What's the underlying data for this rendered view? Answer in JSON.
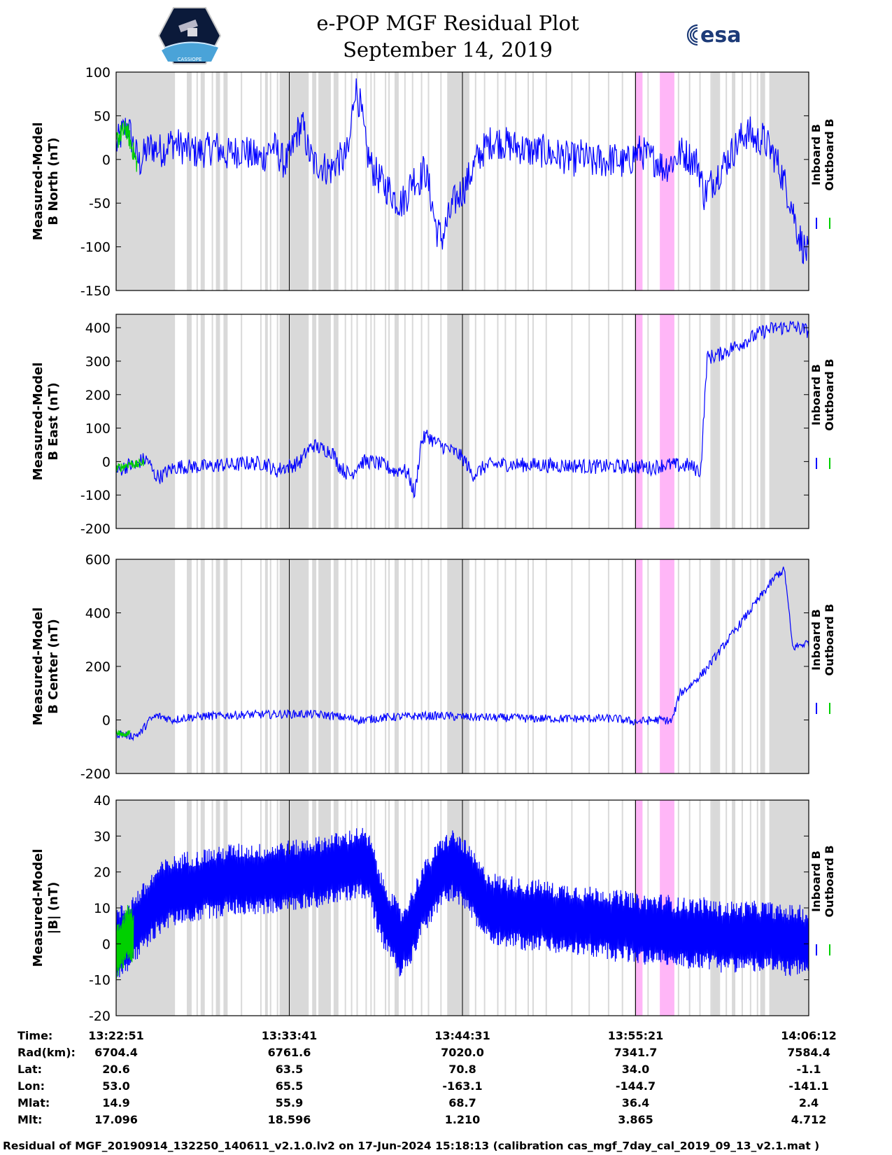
{
  "header": {
    "title_line1": "e-POP MGF Residual Plot",
    "title_line2": "September 14, 2019",
    "logo_left_text": "CASSIOPE",
    "logo_right_text": "esa"
  },
  "colors": {
    "inboard": "#0000ff",
    "outboard": "#00d000",
    "gap_shade": "#d9d9d9",
    "highlight_shade": "#ffb6f7"
  },
  "chart_data": {
    "type": "line",
    "time_ticks": [
      "13:22:51",
      "13:33:41",
      "13:44:31",
      "13:55:21",
      "14:06:12"
    ],
    "legend": [
      "Inboard B",
      "Outboard B"
    ],
    "panels": [
      {
        "ylabel_line1": "Measured-Model",
        "ylabel_line2": "B North (nT)",
        "ylim": [
          -150,
          100
        ],
        "yticks": [
          100,
          50,
          0,
          -50,
          -100,
          -150
        ],
        "series": [
          {
            "name": "Inboard B",
            "values": [
              15,
              30,
              40,
              15,
              -5,
              8,
              15,
              12,
              10,
              18,
              20,
              15,
              12,
              10,
              8,
              10,
              12,
              15,
              10,
              5,
              8,
              10,
              12,
              5,
              3,
              0,
              10,
              15,
              5,
              -5,
              5,
              30,
              40,
              10,
              -5,
              -5,
              -10,
              -12,
              0,
              0,
              10,
              85,
              60,
              10,
              -10,
              -20,
              -30,
              -35,
              -45,
              -50,
              -40,
              -20,
              -25,
              -10,
              -40,
              -80,
              -90,
              -70,
              -50,
              -40,
              -30,
              -15,
              0,
              10,
              18,
              22,
              20,
              18,
              15,
              15,
              12,
              10,
              8,
              10,
              8,
              5,
              5,
              3,
              0,
              0,
              5,
              0,
              -5,
              0,
              -3,
              0,
              0,
              -5,
              -3,
              5,
              10,
              5,
              0,
              0,
              -10,
              -5,
              0,
              8,
              5,
              0,
              -5,
              -40,
              -30,
              -20,
              -10,
              0,
              10,
              20,
              30,
              30,
              20,
              25,
              15,
              5,
              -10,
              -30,
              -50,
              -80,
              -100,
              -110
            ]
          },
          {
            "name": "Outboard B",
            "values": [
              20,
              30,
              35,
              15,
              -5
            ]
          }
        ]
      },
      {
        "ylabel_line1": "Measured-Model",
        "ylabel_line2": "B East (nT)",
        "ylim": [
          -200,
          440
        ],
        "yticks": [
          400,
          300,
          200,
          100,
          0,
          -100,
          -200
        ],
        "series": [
          {
            "name": "Inboard B",
            "values": [
              -30,
              -20,
              -10,
              -15,
              5,
              5,
              -40,
              -45,
              -30,
              -20,
              -15,
              -15,
              -15,
              -15,
              -15,
              -15,
              -10,
              -10,
              -10,
              -10,
              -5,
              -5,
              -5,
              -5,
              -10,
              -30,
              -20,
              -15,
              -10,
              0,
              30,
              50,
              40,
              35,
              30,
              -10,
              -30,
              -40,
              -10,
              0,
              0,
              -5,
              -10,
              -20,
              -30,
              -20,
              -40,
              -100,
              60,
              80,
              60,
              50,
              40,
              30,
              20,
              0,
              -40,
              -30,
              -15,
              -10,
              -8,
              -8,
              -8,
              -10,
              -10,
              -10,
              -10,
              -10,
              -12,
              -12,
              -12,
              -12,
              -12,
              -12,
              -15,
              -15,
              -15,
              -15,
              -15,
              -15,
              -15,
              -15,
              -15,
              -15,
              -20,
              -15,
              -10,
              -10,
              -10,
              -15,
              -10,
              -20,
              -30,
              310,
              315,
              320,
              330,
              340,
              350,
              360,
              370,
              380,
              390,
              395,
              400,
              400,
              405,
              400,
              395,
              390
            ]
          },
          {
            "name": "Outboard B",
            "values": [
              -20,
              -15,
              -5,
              -10,
              0
            ]
          }
        ]
      },
      {
        "ylabel_line1": "Measured-Model",
        "ylabel_line2": "B Center (nT)",
        "ylim": [
          -200,
          600
        ],
        "yticks": [
          600,
          400,
          200,
          0,
          -200
        ],
        "series": [
          {
            "name": "Inboard B",
            "values": [
              -50,
              -55,
              -60,
              -50,
              -5,
              15,
              10,
              0,
              5,
              10,
              12,
              15,
              15,
              15,
              18,
              18,
              20,
              20,
              20,
              20,
              22,
              22,
              22,
              22,
              22,
              20,
              18,
              15,
              10,
              5,
              0,
              0,
              5,
              8,
              10,
              12,
              12,
              14,
              15,
              15,
              15,
              15,
              12,
              12,
              10,
              10,
              10,
              8,
              8,
              8,
              8,
              5,
              5,
              5,
              5,
              5,
              5,
              5,
              5,
              5,
              5,
              5,
              5,
              0,
              -5,
              -5,
              -3,
              0,
              0,
              -5,
              100,
              120,
              150,
              180,
              220,
              260,
              300,
              340,
              380,
              420,
              460,
              500,
              540,
              560,
              270,
              280,
              290
            ]
          },
          {
            "name": "Outboard B",
            "values": [
              -45,
              -50,
              -55,
              -45
            ]
          }
        ]
      },
      {
        "ylabel_line1": "Measured-Model",
        "ylabel_line2": "|B| (nT)",
        "ylim": [
          -20,
          40
        ],
        "yticks": [
          40,
          30,
          20,
          10,
          0,
          -10,
          -20
        ],
        "series": [
          {
            "name": "Inboard B",
            "values": [
              0,
              2,
              5,
              8,
              12,
              14,
              15,
              16,
              16,
              17,
              17,
              18,
              18,
              18,
              18,
              18,
              19,
              19,
              19,
              20,
              20,
              21,
              21,
              22,
              23,
              20,
              10,
              5,
              0,
              5,
              12,
              16,
              20,
              22,
              20,
              16,
              12,
              10,
              9,
              9,
              8,
              8,
              8,
              7,
              7,
              7,
              6,
              6,
              6,
              5,
              5,
              4,
              4,
              4,
              4,
              3,
              3,
              3,
              3,
              2,
              2,
              2,
              2,
              2,
              2,
              1,
              1,
              1,
              0
            ]
          },
          {
            "name": "Outboard B",
            "values": [
              -2,
              0,
              3,
              2
            ]
          }
        ],
        "band": 10
      }
    ],
    "footer": {
      "labels": [
        "Time:",
        "Rad(km):",
        "Lat:",
        "Lon:",
        "Mlat:",
        "Mlt:"
      ],
      "columns": [
        [
          "13:22:51",
          "6704.4",
          "20.6",
          "53.0",
          "14.9",
          "17.096"
        ],
        [
          "13:33:41",
          "6761.6",
          "63.5",
          "65.5",
          "55.9",
          "18.596"
        ],
        [
          "13:44:31",
          "7020.0",
          "70.8",
          "-163.1",
          "68.7",
          "1.210"
        ],
        [
          "13:55:21",
          "7341.7",
          "34.0",
          "-144.7",
          "36.4",
          "3.865"
        ],
        [
          "14:06:12",
          "7584.4",
          "-1.1",
          "-141.1",
          "2.4",
          "4.712"
        ]
      ]
    }
  },
  "footnote": "Residual of MGF_20190914_132250_140611_v2.1.0.lv2 on 17-Jun-2024 15:18:13 (calibration cas_mgf_7day_cal_2019_09_13_v2.1.mat )"
}
